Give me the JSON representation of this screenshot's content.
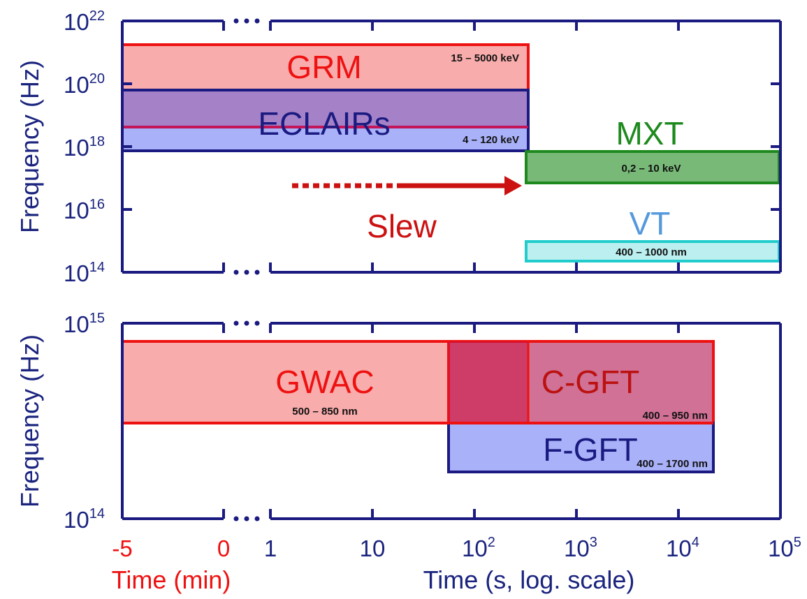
{
  "colors": {
    "axis": "#1a1a80",
    "min_axis": "#ee1111",
    "grm": "#ee1111",
    "eclairs": "#1a1a80",
    "mxt": "#1e8a1e",
    "vt_text": "#5599dd",
    "vt_edge": "#22cccc",
    "slew": "#cc1111",
    "gwac": "#ee1111",
    "cgft": "#ee1111",
    "fgft": "#1a1a80"
  },
  "chart_data": [
    {
      "type": "bar",
      "name": "top",
      "ylabel": "Frequency (Hz)",
      "y_scale": "log",
      "ylim_exp": [
        14,
        22
      ],
      "y_ticks_exp": [
        14,
        16,
        18,
        20,
        22
      ],
      "x_scale": "broken: minutes then log seconds",
      "bands": [
        {
          "key": "grm",
          "label": "GRM",
          "range_label": "15 – 5000 keV",
          "t_start": "-5",
          "t_end": "300",
          "f_low_exp": 18.5,
          "f_high_exp": 21.2
        },
        {
          "key": "eclairs",
          "label": "ECLAIRs",
          "range_label": "4 – 120 keV",
          "t_start": "-5",
          "t_end": "300",
          "f_low_exp": 17.9,
          "f_high_exp": 19.7
        },
        {
          "key": "mxt",
          "label": "MXT",
          "range_label": "0,2 – 10 keV",
          "t_start": "300",
          "t_end": "1e5",
          "f_low_exp": 16.8,
          "f_high_exp": 17.9
        },
        {
          "key": "vt",
          "label": "VT",
          "range_label": "400 – 1000 nm",
          "t_start": "300",
          "t_end": "1e5",
          "f_low_exp": 14.3,
          "f_high_exp": 14.9
        }
      ],
      "annotations": [
        {
          "key": "slew",
          "label": "Slew",
          "from": "2",
          "to": "300"
        }
      ]
    },
    {
      "type": "bar",
      "name": "bottom",
      "ylabel": "Frequency (Hz)",
      "y_scale": "log",
      "ylim_exp": [
        14,
        15
      ],
      "y_ticks_exp": [
        14,
        15
      ],
      "bands": [
        {
          "key": "gwac",
          "label": "GWAC",
          "range_label": "500 – 850 nm",
          "t_start": "-5",
          "t_end": "50",
          "f_low_exp": 14.54,
          "f_high_exp": 14.92
        },
        {
          "key": "cgft",
          "label": "C-GFT",
          "range_label": "400 – 950 nm",
          "t_start": "50",
          "t_end": "2e4",
          "f_low_exp": 14.54,
          "f_high_exp": 14.92
        },
        {
          "key": "fgft",
          "label": "F-GFT",
          "range_label": "400 – 1700 nm",
          "t_start": "50",
          "t_end": "2e4",
          "f_low_exp": 14.34,
          "f_high_exp": 14.54
        }
      ]
    }
  ],
  "x_axis": {
    "minute_ticks": [
      {
        "label": "-5",
        "value": -5
      },
      {
        "label": "0",
        "value": 0
      }
    ],
    "second_ticks": [
      {
        "label": "1",
        "exp": 0,
        "base": "1",
        "sup": ""
      },
      {
        "label": "10",
        "exp": 1,
        "base": "10",
        "sup": ""
      },
      {
        "label": "10^2",
        "exp": 2,
        "base": "10",
        "sup": "2"
      },
      {
        "label": "10^3",
        "exp": 3,
        "base": "10",
        "sup": "3"
      },
      {
        "label": "10^4",
        "exp": 4,
        "base": "10",
        "sup": "4"
      },
      {
        "label": "10^5",
        "exp": 5,
        "base": "10",
        "sup": "5"
      }
    ],
    "label_min": "Time (min)",
    "label_sec": "Time (s, log. scale)"
  },
  "y_tick_base": "10"
}
